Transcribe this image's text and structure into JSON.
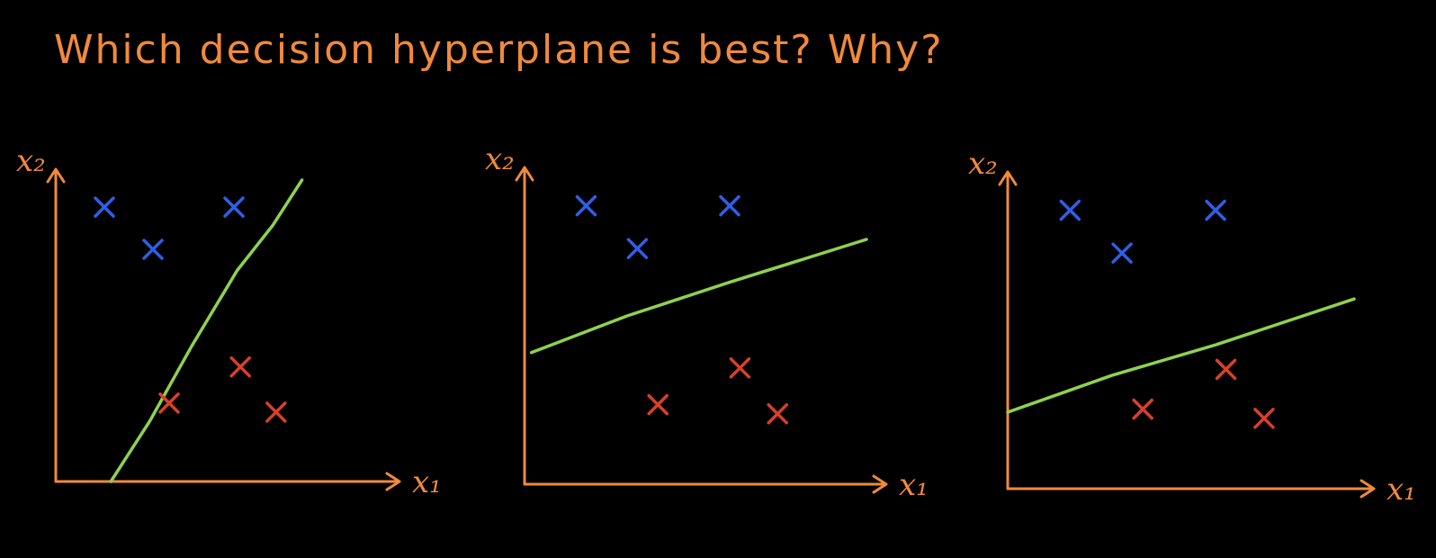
{
  "title": "Which decision hyperplane is best? Why?",
  "colors": {
    "background": "#000000",
    "axes": "#f08a3c",
    "class_a": "#2f5fe8",
    "class_b": "#d9402a",
    "hyperplane": "#8fd14f"
  },
  "panels": [
    {
      "x_label": "x₁",
      "y_label": "x₂",
      "class_a": [
        [
          0.15,
          0.91
        ],
        [
          0.55,
          0.91
        ],
        [
          0.3,
          0.77
        ]
      ],
      "class_b": [
        [
          0.57,
          0.38
        ],
        [
          0.35,
          0.26
        ],
        [
          0.68,
          0.23
        ]
      ],
      "hyperplane": [
        [
          0.17,
          0.0
        ],
        [
          0.29,
          0.2
        ],
        [
          0.42,
          0.45
        ],
        [
          0.56,
          0.7
        ],
        [
          0.67,
          0.85
        ],
        [
          0.76,
          1.0
        ]
      ]
    },
    {
      "x_label": "x₁",
      "y_label": "x₂",
      "class_a": [
        [
          0.18,
          0.91
        ],
        [
          0.6,
          0.91
        ],
        [
          0.33,
          0.77
        ]
      ],
      "class_b": [
        [
          0.63,
          0.38
        ],
        [
          0.39,
          0.26
        ],
        [
          0.74,
          0.23
        ]
      ],
      "hyperplane": [
        [
          0.02,
          0.43
        ],
        [
          0.3,
          0.55
        ],
        [
          0.6,
          0.66
        ],
        [
          1.0,
          0.8
        ]
      ]
    },
    {
      "x_label": "x₁",
      "y_label": "x₂",
      "class_a": [
        [
          0.18,
          0.91
        ],
        [
          0.6,
          0.91
        ],
        [
          0.33,
          0.77
        ]
      ],
      "class_b": [
        [
          0.63,
          0.39
        ],
        [
          0.39,
          0.26
        ],
        [
          0.74,
          0.23
        ]
      ],
      "hyperplane": [
        [
          0.0,
          0.25
        ],
        [
          0.3,
          0.37
        ],
        [
          0.6,
          0.47
        ],
        [
          1.0,
          0.62
        ]
      ]
    }
  ]
}
